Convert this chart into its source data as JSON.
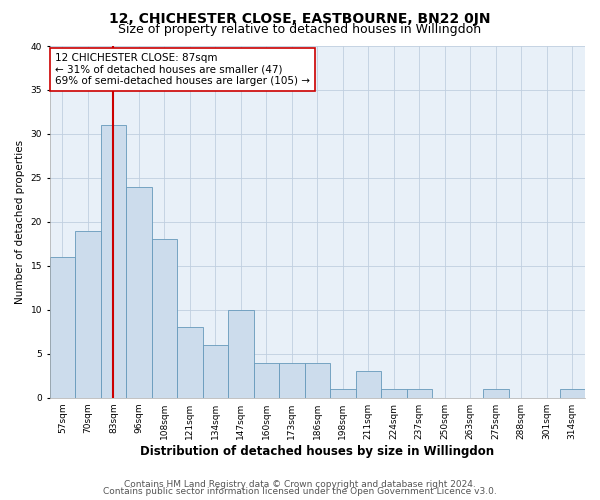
{
  "title": "12, CHICHESTER CLOSE, EASTBOURNE, BN22 0JN",
  "subtitle": "Size of property relative to detached houses in Willingdon",
  "xlabel": "Distribution of detached houses by size in Willingdon",
  "ylabel": "Number of detached properties",
  "categories": [
    "57sqm",
    "70sqm",
    "83sqm",
    "96sqm",
    "108sqm",
    "121sqm",
    "134sqm",
    "147sqm",
    "160sqm",
    "173sqm",
    "186sqm",
    "198sqm",
    "211sqm",
    "224sqm",
    "237sqm",
    "250sqm",
    "263sqm",
    "275sqm",
    "288sqm",
    "301sqm",
    "314sqm"
  ],
  "values": [
    16,
    19,
    31,
    24,
    18,
    8,
    6,
    10,
    4,
    4,
    4,
    1,
    3,
    1,
    1,
    0,
    0,
    1,
    0,
    0,
    1
  ],
  "bar_color": "#ccdcec",
  "bar_edgecolor": "#6699bb",
  "vline_x": 2.0,
  "vline_color": "#cc0000",
  "annotation_text": "12 CHICHESTER CLOSE: 87sqm\n← 31% of detached houses are smaller (47)\n69% of semi-detached houses are larger (105) →",
  "annotation_box_edgecolor": "#cc0000",
  "ylim": [
    0,
    40
  ],
  "yticks": [
    0,
    5,
    10,
    15,
    20,
    25,
    30,
    35,
    40
  ],
  "grid_color": "#c0cfe0",
  "background_color": "#e8f0f8",
  "footer_line1": "Contains HM Land Registry data © Crown copyright and database right 2024.",
  "footer_line2": "Contains public sector information licensed under the Open Government Licence v3.0.",
  "title_fontsize": 10,
  "subtitle_fontsize": 9,
  "xlabel_fontsize": 8.5,
  "ylabel_fontsize": 7.5,
  "tick_fontsize": 6.5,
  "annotation_fontsize": 7.5,
  "footer_fontsize": 6.5
}
